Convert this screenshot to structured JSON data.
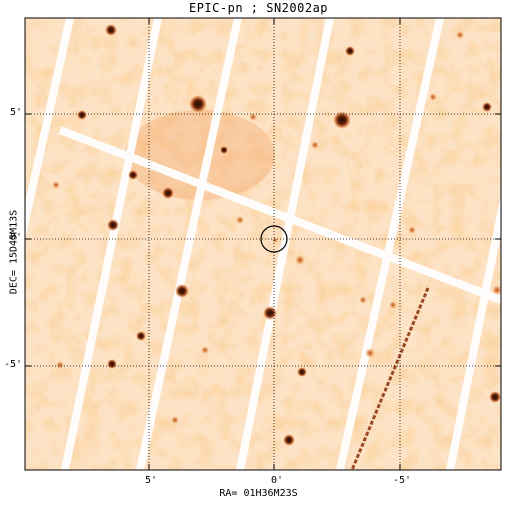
{
  "title": "EPIC-pn ; SN2002ap",
  "xlabel": "RA= 01H36M23S",
  "ylabel": "DEC= 15D45M13S",
  "x_ticks": [
    {
      "offset_arcmin": 5,
      "label": "5'"
    },
    {
      "offset_arcmin": 0,
      "label": "0'"
    },
    {
      "offset_arcmin": -5,
      "label": "-5'"
    }
  ],
  "y_ticks": [
    {
      "offset_arcmin": 5,
      "label": "5'"
    },
    {
      "offset_arcmin": 0,
      "label": "0'"
    },
    {
      "offset_arcmin": -5,
      "label": "-5'"
    }
  ],
  "colors": {
    "background": "#fde7cf",
    "source_dark": "#3a1508",
    "source_mid": "#c2561a",
    "gap": "#ffffff",
    "grid": "#000000"
  },
  "target_marker": "circle at field center (SN2002ap position)",
  "grid": "dotted",
  "colormap": "white-orange-dark brown"
}
